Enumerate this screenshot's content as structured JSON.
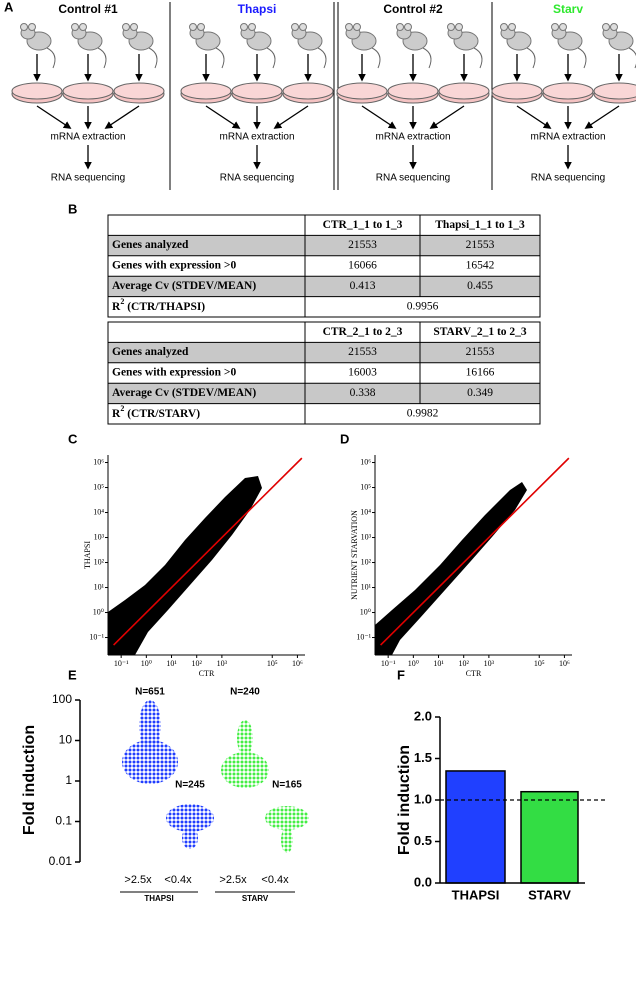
{
  "panels": {
    "a": "A",
    "b": "B",
    "c": "C",
    "d": "D",
    "e": "E",
    "f": "F"
  },
  "workflow": {
    "groups": [
      {
        "name": "Control #1",
        "color": "#000000"
      },
      {
        "name": "Thapsi",
        "color": "#1a1aff"
      },
      {
        "name": "Control #2",
        "color": "#000000"
      },
      {
        "name": "Starv",
        "color": "#2ee82e"
      }
    ],
    "step1": "mRNA extraction",
    "step2": "RNA sequencing"
  },
  "tables": [
    {
      "columns": [
        "CTR_1_1 to 1_3",
        "Thapsi_1_1 to 1_3"
      ],
      "rows": [
        [
          "Genes analyzed",
          21553,
          21553
        ],
        [
          "Genes with expression >0",
          16066,
          16542
        ],
        [
          "Average Cv (STDEV/MEAN)",
          0.413,
          0.455
        ]
      ],
      "r2": {
        "base": "R",
        "sup": "2",
        "rest": " (CTR/THAPSI)",
        "value": 0.9956
      }
    },
    {
      "columns": [
        "CTR_2_1 to 2_3",
        "STARV_2_1 to 2_3"
      ],
      "rows": [
        [
          "Genes analyzed",
          21553,
          21553
        ],
        [
          "Genes with expression >0",
          16003,
          16166
        ],
        [
          "Average Cv (STDEV/MEAN)",
          0.338,
          0.349
        ]
      ],
      "r2": {
        "base": "R",
        "sup": "2",
        "rest": " (CTR/STARV)",
        "value": 0.9982
      }
    }
  ],
  "chart_data": [
    {
      "type": "scatter",
      "xlabel": "CTR",
      "ylabel": "THAPSI",
      "log": true,
      "xlim": [
        0.03,
        2000000
      ],
      "ylim": [
        0.02,
        2000000
      ],
      "xticks": [
        {
          "value": 0.1,
          "label": "10⁻¹"
        },
        {
          "value": 1,
          "label": "10⁰"
        },
        {
          "value": 10,
          "label": "10¹"
        },
        {
          "value": 100,
          "label": "10²"
        },
        {
          "value": 1000,
          "label": "10³"
        },
        {
          "value": 100000,
          "label": "10⁵"
        },
        {
          "value": 1000000,
          "label": "10⁶"
        }
      ],
      "yticks": [
        {
          "value": 0.1,
          "label": "10⁻¹"
        },
        {
          "value": 1,
          "label": "10⁰"
        },
        {
          "value": 10,
          "label": "10¹"
        },
        {
          "value": 100,
          "label": "10²"
        },
        {
          "value": 1000,
          "label": "10³"
        },
        {
          "value": 10000,
          "label": "10⁴"
        },
        {
          "value": 100000,
          "label": "10⁵"
        },
        {
          "value": 1000000,
          "label": "10⁶"
        }
      ],
      "line": {
        "color": "#e00000",
        "x": [
          0.05,
          1500000
        ],
        "y": [
          0.05,
          1500000
        ]
      }
    },
    {
      "type": "scatter",
      "xlabel": "CTR",
      "ylabel": "NUTRIENT STARVATION",
      "log": true,
      "xlim": [
        0.03,
        2000000
      ],
      "ylim": [
        0.02,
        2000000
      ],
      "xticks": [
        {
          "value": 0.1,
          "label": "10⁻¹"
        },
        {
          "value": 1,
          "label": "10⁰"
        },
        {
          "value": 10,
          "label": "10¹"
        },
        {
          "value": 100,
          "label": "10²"
        },
        {
          "value": 1000,
          "label": "10³"
        },
        {
          "value": 100000,
          "label": "10⁵"
        },
        {
          "value": 1000000,
          "label": "10⁶"
        }
      ],
      "yticks": [
        {
          "value": 0.1,
          "label": "10⁻¹"
        },
        {
          "value": 1,
          "label": "10⁰"
        },
        {
          "value": 10,
          "label": "10¹"
        },
        {
          "value": 100,
          "label": "10²"
        },
        {
          "value": 1000,
          "label": "10³"
        },
        {
          "value": 10000,
          "label": "10⁴"
        },
        {
          "value": 100000,
          "label": "10⁵"
        },
        {
          "value": 1000000,
          "label": "10⁶"
        }
      ],
      "line": {
        "color": "#e00000",
        "x": [
          0.05,
          1500000
        ],
        "y": [
          0.05,
          1500000
        ]
      }
    },
    {
      "type": "dot",
      "ylabel": "Fold induction",
      "log": true,
      "ylim": [
        0.01,
        100
      ],
      "yticks": [
        100,
        10,
        1,
        0.1,
        0.01
      ],
      "categories": [
        ">2.5x",
        "<0.4x",
        ">2.5x",
        "<0.4x"
      ],
      "series": [
        {
          "name": "THAPSI",
          "color": "#1f3dff"
        },
        {
          "name": "STARV",
          "color": "#44ee44"
        }
      ],
      "n": [
        651,
        245,
        240,
        165
      ],
      "value_labels": [
        "N=651",
        "N=245",
        "N=240",
        "N=165"
      ]
    },
    {
      "type": "bar",
      "ylabel": "Fold induction",
      "categories": [
        "THAPSI",
        "STARV"
      ],
      "values": [
        1.35,
        1.1
      ],
      "colors": [
        "#2040ff",
        "#33dd44"
      ],
      "ylim": [
        0,
        2
      ],
      "yticks": [
        {
          "value": 0,
          "label": "0.0"
        },
        0.5,
        {
          "value": 1,
          "label": "1.0"
        },
        1.5,
        {
          "value": 2,
          "label": "2.0"
        }
      ],
      "reference_line": 1
    }
  ]
}
